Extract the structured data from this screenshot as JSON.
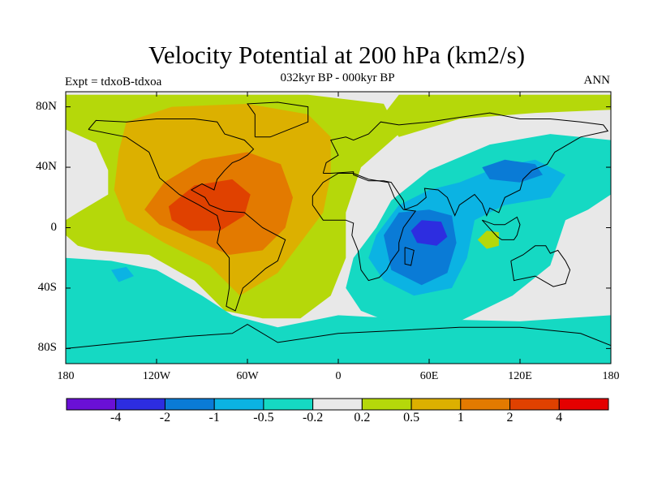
{
  "title": "Velocity Potential at 200 hPa (km2/s)",
  "subtitle": "032kyr BP - 000kyr BP",
  "left_label": "Expt = tdxoB-tdxoa",
  "right_label": "ANN",
  "map": {
    "projection": "cylindrical-equidistant",
    "lon_range": [
      -180,
      180
    ],
    "lat_range": [
      -90,
      90
    ],
    "x_ticks": [
      {
        "lon": -180,
        "label": "180"
      },
      {
        "lon": -120,
        "label": "120W"
      },
      {
        "lon": -60,
        "label": "60W"
      },
      {
        "lon": 0,
        "label": "0"
      },
      {
        "lon": 60,
        "label": "60E"
      },
      {
        "lon": 120,
        "label": "120E"
      },
      {
        "lon": 180,
        "label": "180"
      }
    ],
    "y_ticks": [
      {
        "lat": 80,
        "label": "80N"
      },
      {
        "lat": 40,
        "label": "40N"
      },
      {
        "lat": 0,
        "label": "0"
      },
      {
        "lat": -40,
        "label": "40S"
      },
      {
        "lat": -80,
        "label": "80S"
      }
    ],
    "background_color": "#e8e8e8",
    "fields": [
      {
        "name": "western-positive-mass",
        "polygon": [
          [
            -180,
            88
          ],
          [
            -180,
            65
          ],
          [
            -160,
            56
          ],
          [
            -152,
            38
          ],
          [
            -152,
            22
          ],
          [
            -172,
            10
          ],
          [
            -180,
            5
          ],
          [
            -180,
            -5
          ],
          [
            -172,
            -12
          ],
          [
            -160,
            -15
          ],
          [
            -125,
            -18
          ],
          [
            -95,
            -35
          ],
          [
            -75,
            -55
          ],
          [
            -50,
            -60
          ],
          [
            -25,
            -60
          ],
          [
            -5,
            -45
          ],
          [
            5,
            -20
          ],
          [
            5,
            10
          ],
          [
            15,
            40
          ],
          [
            40,
            62
          ],
          [
            30,
            82
          ],
          [
            -20,
            88
          ]
        ],
        "level": 0.3
      },
      {
        "name": "northeast-positive-strip",
        "polygon": [
          [
            40,
            60
          ],
          [
            80,
            72
          ],
          [
            130,
            76
          ],
          [
            180,
            78
          ],
          [
            180,
            88
          ],
          [
            40,
            88
          ],
          [
            30,
            75
          ]
        ],
        "level": 0.3
      },
      {
        "name": "pos-1-ring",
        "polygon": [
          [
            -140,
            70
          ],
          [
            -110,
            80
          ],
          [
            -60,
            82
          ],
          [
            -20,
            75
          ],
          [
            -5,
            60
          ],
          [
            -5,
            35
          ],
          [
            -10,
            10
          ],
          [
            -25,
            -10
          ],
          [
            -40,
            -30
          ],
          [
            -65,
            -45
          ],
          [
            -85,
            -25
          ],
          [
            -115,
            -10
          ],
          [
            -140,
            5
          ],
          [
            -148,
            25
          ],
          [
            -145,
            50
          ]
        ],
        "level": 0.7
      },
      {
        "name": "pos-2-core",
        "polygon": [
          [
            -128,
            12
          ],
          [
            -115,
            30
          ],
          [
            -90,
            45
          ],
          [
            -60,
            50
          ],
          [
            -38,
            42
          ],
          [
            -30,
            20
          ],
          [
            -35,
            0
          ],
          [
            -50,
            -15
          ],
          [
            -72,
            -18
          ],
          [
            -95,
            -8
          ],
          [
            -118,
            2
          ]
        ],
        "level": 1.5
      },
      {
        "name": "pos-4-core",
        "polygon": [
          [
            -112,
            14
          ],
          [
            -95,
            28
          ],
          [
            -70,
            32
          ],
          [
            -58,
            22
          ],
          [
            -62,
            8
          ],
          [
            -78,
            -2
          ],
          [
            -98,
            -2
          ],
          [
            -110,
            5
          ]
        ],
        "level": 2.5
      },
      {
        "name": "southern-negative-band",
        "polygon": [
          [
            -180,
            -20
          ],
          [
            -150,
            -22
          ],
          [
            -120,
            -28
          ],
          [
            -90,
            -45
          ],
          [
            -70,
            -58
          ],
          [
            -40,
            -66
          ],
          [
            0,
            -58
          ],
          [
            40,
            -60
          ],
          [
            120,
            -62
          ],
          [
            180,
            -58
          ],
          [
            180,
            -90
          ],
          [
            -180,
            -90
          ]
        ],
        "level": -0.35
      },
      {
        "name": "east-negative-basin",
        "polygon": [
          [
            10,
            -20
          ],
          [
            25,
            0
          ],
          [
            35,
            18
          ],
          [
            60,
            38
          ],
          [
            100,
            55
          ],
          [
            140,
            62
          ],
          [
            180,
            58
          ],
          [
            180,
            22
          ],
          [
            165,
            12
          ],
          [
            150,
            5
          ],
          [
            145,
            -10
          ],
          [
            140,
            -25
          ],
          [
            115,
            -45
          ],
          [
            80,
            -62
          ],
          [
            40,
            -65
          ],
          [
            15,
            -55
          ],
          [
            5,
            -40
          ]
        ],
        "level": -0.35
      },
      {
        "name": "east-neg-0.5",
        "polygon": [
          [
            25,
            -5
          ],
          [
            40,
            15
          ],
          [
            60,
            25
          ],
          [
            80,
            30
          ],
          [
            105,
            40
          ],
          [
            130,
            45
          ],
          [
            150,
            35
          ],
          [
            140,
            20
          ],
          [
            110,
            15
          ],
          [
            90,
            5
          ],
          [
            85,
            -20
          ],
          [
            75,
            -40
          ],
          [
            50,
            -45
          ],
          [
            30,
            -35
          ],
          [
            20,
            -20
          ]
        ],
        "level": -0.7
      },
      {
        "name": "east-neg-1",
        "polygon": [
          [
            30,
            -5
          ],
          [
            40,
            10
          ],
          [
            60,
            12
          ],
          [
            75,
            8
          ],
          [
            78,
            -10
          ],
          [
            72,
            -30
          ],
          [
            55,
            -38
          ],
          [
            35,
            -28
          ]
        ],
        "level": -1.5
      },
      {
        "name": "east-neg-1-north",
        "polygon": [
          [
            95,
            40
          ],
          [
            110,
            45
          ],
          [
            130,
            42
          ],
          [
            135,
            35
          ],
          [
            120,
            30
          ],
          [
            100,
            32
          ]
        ],
        "level": -1.5
      },
      {
        "name": "east-neg-2",
        "polygon": [
          [
            48,
            -2
          ],
          [
            55,
            5
          ],
          [
            68,
            4
          ],
          [
            72,
            -6
          ],
          [
            65,
            -12
          ],
          [
            52,
            -10
          ]
        ],
        "level": -3
      },
      {
        "name": "pacific-neg-blob",
        "polygon": [
          [
            -150,
            -28
          ],
          [
            -140,
            -26
          ],
          [
            -135,
            -32
          ],
          [
            -145,
            -36
          ]
        ],
        "level": -0.7
      },
      {
        "name": "indonesia-pos",
        "polygon": [
          [
            92,
            -8
          ],
          [
            98,
            -2
          ],
          [
            106,
            -3
          ],
          [
            106,
            -12
          ],
          [
            98,
            -14
          ]
        ],
        "level": 0.3
      }
    ]
  },
  "colorbar": {
    "colors": [
      "#6a10d6",
      "#2d2de0",
      "#0a7bd6",
      "#0bb3e3",
      "#15d9c3",
      "#e8e8e8",
      "#b5d80a",
      "#dcb000",
      "#e37a00",
      "#e04100",
      "#e40000"
    ],
    "labels": [
      "-4",
      "-2",
      "-1",
      "-0.5",
      "-0.2",
      "0.2",
      "0.5",
      "1",
      "2",
      "4"
    ],
    "levels": [
      -4,
      -2,
      -1,
      -0.5,
      -0.2,
      0.2,
      0.5,
      1,
      2,
      4
    ]
  }
}
